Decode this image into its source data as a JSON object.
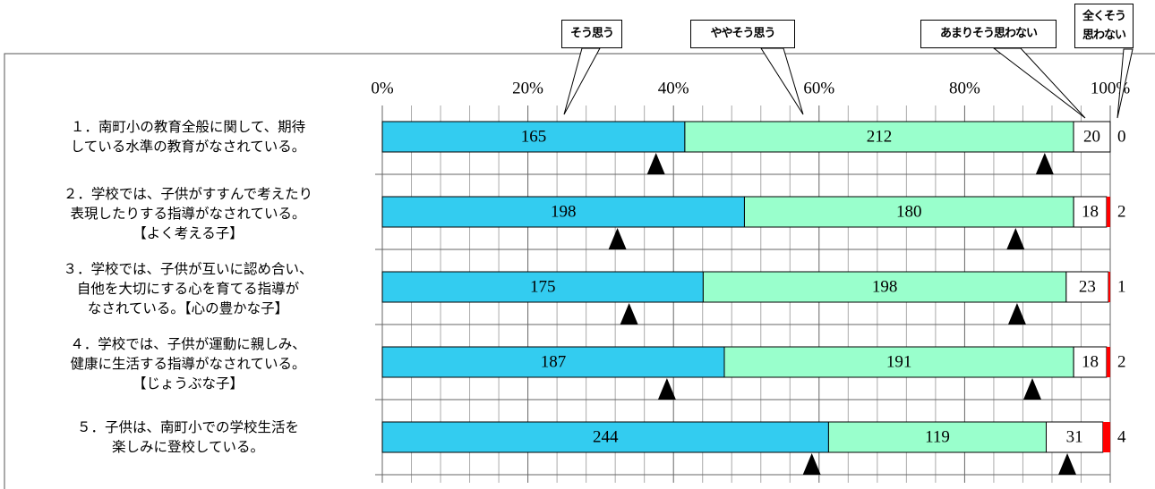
{
  "chart_data": {
    "type": "stacked_bar_100",
    "categories": [
      "１．南町小の教育全般に関して、期待\nしている水準の教育がなされている。",
      "２．学校では、子供がすすんで考えたり\n表現したりする指導がなされている。\n【よく考える子】",
      "３．学校では、子供が互いに認め合い、\n自他を大切にする心を育てる指導が\nなされている。【心の豊かな子】",
      "４．学校では、子供が運動に親しみ、\n健康に生活する指導がなされている。\n【じょうぶな子】",
      "５．子供は、南町小での学校生活を\n楽しみに登校している。"
    ],
    "series": [
      {
        "name": "そう思う",
        "color": "#33ccf0",
        "values": [
          165,
          198,
          175,
          187,
          244
        ]
      },
      {
        "name": "ややそう思う",
        "color": "#99ffcc",
        "values": [
          212,
          180,
          198,
          191,
          119
        ]
      },
      {
        "name": "あまりそう思わない",
        "color": "#ffffff",
        "values": [
          20,
          18,
          23,
          18,
          31
        ]
      },
      {
        "name": "全くそう思わない",
        "color": "#ff0000",
        "values": [
          0,
          2,
          1,
          2,
          4
        ]
      }
    ],
    "markers": [
      [
        37.6,
        91.0
      ],
      [
        32.3,
        87.0
      ],
      [
        33.9,
        87.2
      ],
      [
        39.1,
        89.3
      ],
      [
        59.0,
        94.1
      ]
    ],
    "xlim": [
      0,
      100
    ],
    "xticks": [
      {
        "value": 0,
        "label": "0%"
      },
      {
        "value": 20,
        "label": "20%"
      },
      {
        "value": 40,
        "label": "40%"
      },
      {
        "value": 60,
        "label": "60%"
      },
      {
        "value": 80,
        "label": "80%"
      },
      {
        "value": 100,
        "label": "100%"
      }
    ],
    "minor_xticks": [
      4,
      8,
      12,
      16,
      24,
      28,
      32,
      36,
      44,
      48,
      52,
      56,
      64,
      68,
      72,
      76,
      84,
      88,
      92,
      96
    ],
    "grid": true
  }
}
